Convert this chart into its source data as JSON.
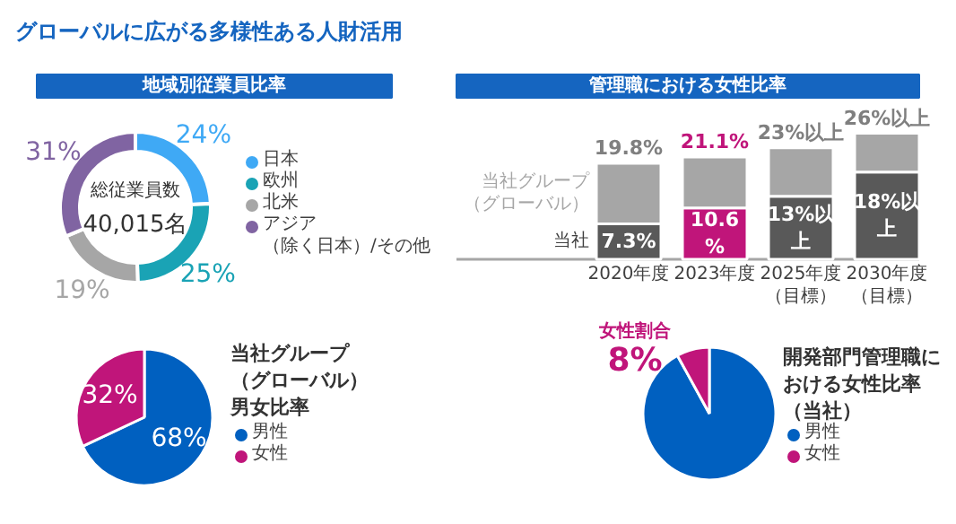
{
  "chart_data": [
    {
      "type": "donut",
      "title": "グローバルに広がる多様性ある人財活用",
      "subtitle": "地域別従業員比率",
      "categories": [
        "日本",
        "欧州",
        "北米",
        "アジア（除く日本）/その他"
      ],
      "values": [
        24,
        25,
        19,
        31
      ],
      "colors": [
        "#3fa9f5",
        "#1aa3b5",
        "#a6a6a6",
        "#8064a2"
      ],
      "value_labels": [
        "24%",
        "25%",
        "19%",
        "31%"
      ],
      "annotations": [
        "総従業員数",
        "40,015名"
      ],
      "legend": "right"
    },
    {
      "type": "bar",
      "title": "管理職における女性比率",
      "categories": [
        "2020年度",
        "2023年度",
        "2025年度（目標）",
        "2030年度（目標）"
      ],
      "stacked": true,
      "series": [
        {
          "name": "当社",
          "colors": [
            "#595959",
            "#c0157a",
            "#595959",
            "#595959"
          ],
          "values": [
            7.3,
            10.6,
            13,
            18
          ],
          "value_labels": [
            "7.3%",
            "10.6%",
            "13%以上",
            "18%以上"
          ]
        },
        {
          "name": "当社グループ（グローバル）",
          "color": "#a6a6a6",
          "values": [
            12.5,
            10.5,
            10,
            8
          ]
        }
      ],
      "totals": [
        "19.8%",
        "21.1%",
        "23%以上",
        "26%以上"
      ]
    },
    {
      "type": "pie",
      "title": "当社グループ（グローバル）男女比率",
      "categories": [
        "男性",
        "女性"
      ],
      "values": [
        68,
        32
      ],
      "colors": [
        "#0060c0",
        "#c0157a"
      ],
      "value_labels": [
        "68%",
        "32%"
      ],
      "legend": "right"
    },
    {
      "type": "pie",
      "title": "開発部門管理職における女性比率（当社）",
      "categories": [
        "男性",
        "女性"
      ],
      "values": [
        92,
        8
      ],
      "colors": [
        "#0060c0",
        "#c0157a"
      ],
      "value_labels": [
        null,
        "8%"
      ],
      "annotations": [
        "女性割合"
      ],
      "legend": "right"
    }
  ]
}
